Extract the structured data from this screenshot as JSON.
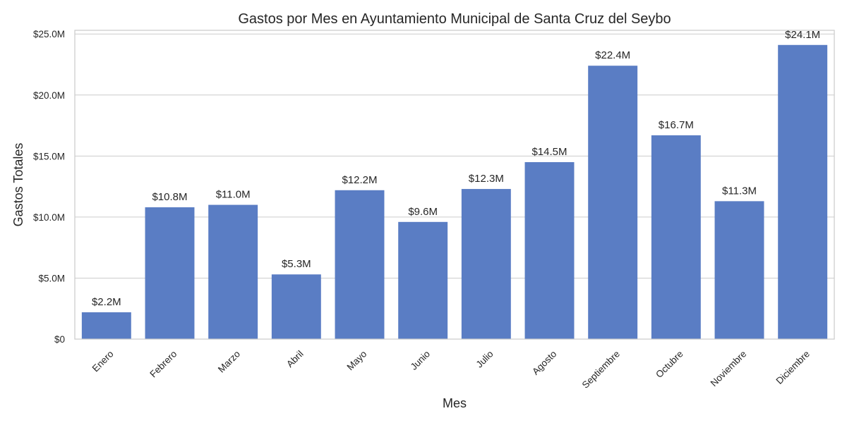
{
  "chart_data": {
    "type": "bar",
    "title": "Gastos por Mes en Ayuntamiento Municipal de Santa Cruz del Seybo",
    "xlabel": "Mes",
    "ylabel": "Gastos Totales",
    "categories": [
      "Enero",
      "Febrero",
      "Marzo",
      "Abril",
      "Mayo",
      "Junio",
      "Julio",
      "Agosto",
      "Septiembre",
      "Octubre",
      "Noviembre",
      "Diciembre"
    ],
    "values": [
      2.2,
      10.8,
      11.0,
      5.3,
      12.2,
      9.6,
      12.3,
      14.5,
      22.4,
      16.7,
      11.3,
      24.1
    ],
    "value_labels": [
      "$2.2M",
      "$10.8M",
      "$11.0M",
      "$5.3M",
      "$12.2M",
      "$9.6M",
      "$12.3M",
      "$14.5M",
      "$22.4M",
      "$16.7M",
      "$11.3M",
      "$24.1M"
    ],
    "value_unit": "millones USD",
    "ylim": [
      0,
      25.3
    ],
    "yticks": [
      0,
      5,
      10,
      15,
      20,
      25
    ],
    "ytick_labels": [
      "$0",
      "$5.0M",
      "$10.0M",
      "$15.0M",
      "$20.0M",
      "$25.0M"
    ],
    "grid": true,
    "bar_color": "#5a7dc4"
  }
}
